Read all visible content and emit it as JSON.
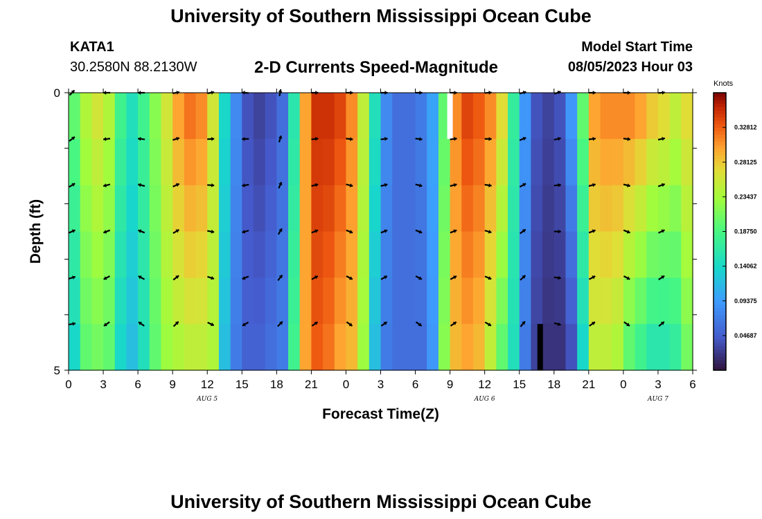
{
  "header": {
    "title": "University of Southern Mississippi Ocean Cube",
    "station": "KATA1",
    "coords": "30.2580N  88.2130W",
    "plot_title": "2-D Currents Speed-Magnitude",
    "model_start_label": "Model Start Time",
    "model_start_value": "08/05/2023 Hour 03"
  },
  "footer": {
    "title": "University of Southern Mississippi Ocean Cube"
  },
  "chart_data": {
    "type": "heatmap",
    "title": "2-D Currents Speed-Magnitude",
    "xlabel": "Forecast Time(Z)",
    "ylabel": "Depth (ft)",
    "x_tick_labels": [
      "0",
      "3",
      "6",
      "9",
      "12",
      "15",
      "18",
      "21",
      "0",
      "3",
      "6",
      "9",
      "12",
      "15",
      "18",
      "21",
      "0",
      "3",
      "6"
    ],
    "x_range_hours": [
      0,
      54
    ],
    "day_labels": [
      {
        "hour": 12,
        "label": "AUG 5"
      },
      {
        "hour": 36,
        "label": "AUG 6"
      },
      {
        "hour": 51,
        "label": "AUG 7"
      }
    ],
    "y_tick_labels": [
      "0",
      "5"
    ],
    "ylim_ft": [
      0,
      5
    ],
    "depth_levels": 6,
    "colorbar": {
      "unit": "Knots",
      "range": [
        0.0,
        0.375
      ],
      "ticks": [
        "0.32812",
        "0.28125",
        "0.23437",
        "0.18750",
        "0.14062",
        "0.09375",
        "0.04687"
      ],
      "tick_values": [
        0.32812,
        0.28125,
        0.23437,
        0.1875,
        0.14062,
        0.09375,
        0.04687
      ]
    },
    "speed_by_hour_top": [
      0.2,
      0.24,
      0.26,
      0.24,
      0.18,
      0.15,
      0.18,
      0.22,
      0.26,
      0.3,
      0.32,
      0.31,
      0.26,
      0.14,
      0.08,
      0.04,
      0.03,
      0.04,
      0.06,
      0.16,
      0.3,
      0.35,
      0.35,
      0.34,
      0.31,
      0.25,
      0.15,
      0.08,
      0.06,
      0.06,
      0.07,
      0.1,
      0.2,
      0.31,
      0.34,
      0.33,
      0.31,
      0.27,
      0.17,
      0.09,
      0.04,
      0.03,
      0.04,
      0.09,
      0.2,
      0.3,
      0.31,
      0.31,
      0.31,
      0.3,
      0.28,
      0.27,
      0.25,
      0.27
    ],
    "speed_by_hour_bottom": [
      0.14,
      0.2,
      0.21,
      0.2,
      0.14,
      0.12,
      0.15,
      0.2,
      0.23,
      0.24,
      0.25,
      0.25,
      0.24,
      0.12,
      0.07,
      0.05,
      0.05,
      0.06,
      0.07,
      0.18,
      0.3,
      0.33,
      0.32,
      0.3,
      0.29,
      0.23,
      0.12,
      0.07,
      0.06,
      0.06,
      0.06,
      0.09,
      0.22,
      0.29,
      0.3,
      0.29,
      0.25,
      0.2,
      0.15,
      0.07,
      0.03,
      0.02,
      0.02,
      0.04,
      0.14,
      0.25,
      0.25,
      0.24,
      0.2,
      0.18,
      0.16,
      0.16,
      0.17,
      0.21
    ],
    "vector_columns_hour": [
      0,
      3,
      6,
      9,
      12,
      15,
      18,
      21,
      24,
      27,
      30,
      33,
      36,
      39,
      42,
      45,
      48,
      51
    ],
    "vector_direction_deg": [
      45,
      180,
      180,
      10,
      10,
      175,
      80,
      0,
      0,
      0,
      0,
      0,
      5,
      15,
      20,
      0,
      0,
      5
    ]
  }
}
